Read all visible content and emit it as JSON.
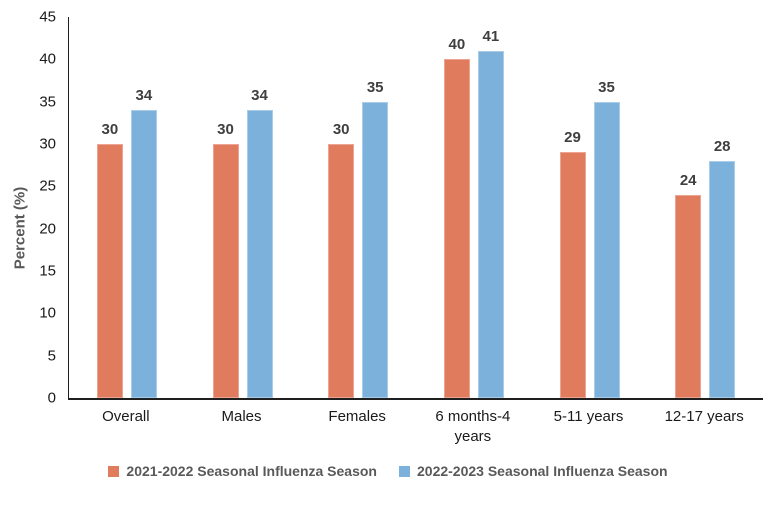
{
  "chart_data": {
    "type": "bar",
    "title": "",
    "ylabel": "Percent (%)",
    "xlabel": "",
    "ylim": [
      0,
      45
    ],
    "yticks": [
      0,
      5,
      10,
      15,
      20,
      25,
      30,
      35,
      40,
      45
    ],
    "grid": false,
    "data_labels": true,
    "legend_position": "bottom",
    "categories": [
      "Overall",
      "Males",
      "Females",
      "6 months-4 years",
      "5-11 years",
      "12-17 years"
    ],
    "series": [
      {
        "name": "2021-2022 Seasonal Influenza Season",
        "color": "#E07B5E",
        "border_color": "#ECA globally",
        "values": [
          30,
          30,
          30,
          40,
          29,
          24
        ]
      },
      {
        "name": "2022-2023 Seasonal Influenza Season",
        "color": "#7CB1DB",
        "border_color": "#A9CDE9",
        "values": [
          34,
          34,
          35,
          41,
          35,
          28
        ]
      }
    ],
    "colors": {
      "axis_line": "#1f1f1f",
      "tick_label": "#1a1a1a",
      "data_label": "#3f3f3f",
      "y_title": "#595959",
      "legend_text": "#595959",
      "series_border_1": "#ECA globally",
      "series_border_2": "#A9CDE9"
    }
  }
}
